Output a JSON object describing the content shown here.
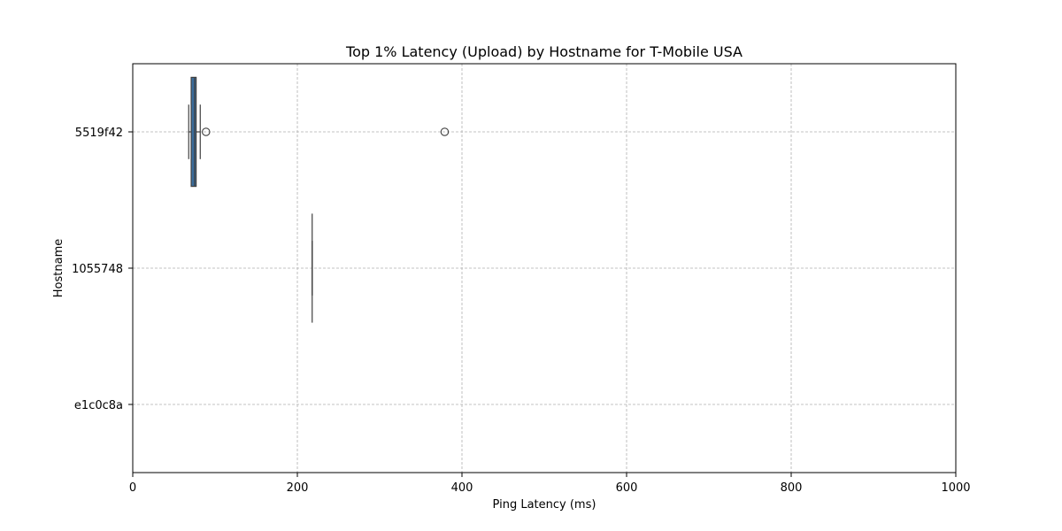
{
  "chart_data": {
    "type": "boxplot",
    "orientation": "horizontal",
    "title": "Top 1% Latency (Upload) by Hostname for T-Mobile USA",
    "xlabel": "Ping Latency (ms)",
    "ylabel": "Hostname",
    "xlim": [
      0,
      1000
    ],
    "xticks": [
      0,
      200,
      400,
      600,
      800,
      1000
    ],
    "grid": true,
    "categories": [
      "5519f42",
      "1055748",
      "e1c0c8a"
    ],
    "boxes": [
      {
        "category": "5519f42",
        "q1": 71,
        "median": 75,
        "q3": 77,
        "whisker_low": 68,
        "whisker_high": 82,
        "outliers": [
          89,
          379
        ],
        "color": "#3a6e9e"
      },
      {
        "category": "1055748",
        "q1": 218,
        "median": 218,
        "q3": 218,
        "whisker_low": 218,
        "whisker_high": 218,
        "outliers": [],
        "color": "#3a6e9e"
      },
      {
        "category": "e1c0c8a",
        "empty": true
      }
    ]
  }
}
